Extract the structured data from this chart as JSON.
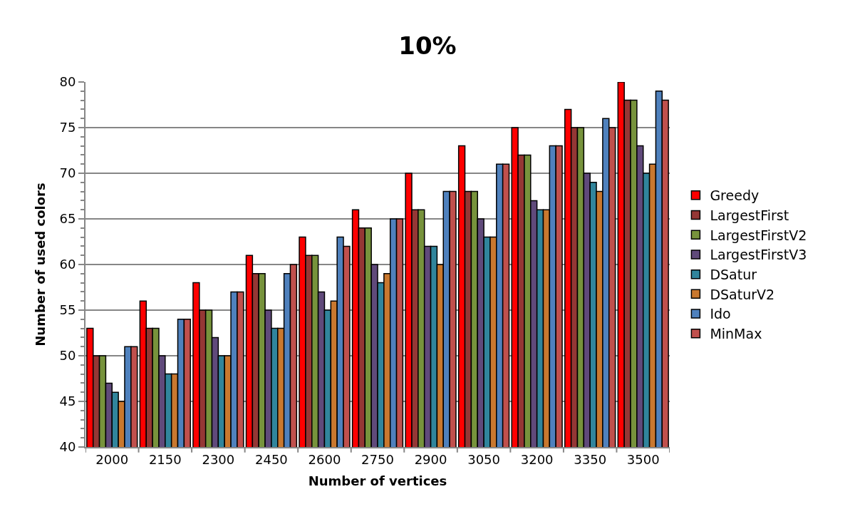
{
  "chart_data": {
    "type": "bar",
    "title": "10%",
    "xlabel": "Number of vertices",
    "ylabel": "Number of used colors",
    "categories": [
      "2000",
      "2150",
      "2300",
      "2450",
      "2600",
      "2750",
      "2900",
      "3050",
      "3200",
      "3350",
      "3500"
    ],
    "series": [
      {
        "name": "Greedy",
        "color": "#ff0000",
        "values": [
          53,
          56,
          58,
          61,
          63,
          66,
          70,
          73,
          75,
          77,
          80
        ]
      },
      {
        "name": "LargestFirst",
        "color": "#953735",
        "values": [
          50,
          53,
          55,
          59,
          61,
          64,
          66,
          68,
          72,
          75,
          78
        ]
      },
      {
        "name": "LargestFirstV2",
        "color": "#77933c",
        "values": [
          50,
          53,
          55,
          59,
          61,
          64,
          66,
          68,
          72,
          75,
          78
        ]
      },
      {
        "name": "LargestFirstV3",
        "color": "#604a7b",
        "values": [
          47,
          50,
          52,
          55,
          57,
          60,
          62,
          65,
          67,
          70,
          73
        ]
      },
      {
        "name": "DSatur",
        "color": "#31859c",
        "values": [
          46,
          48,
          50,
          53,
          55,
          58,
          62,
          63,
          66,
          69,
          70
        ]
      },
      {
        "name": "DSaturV2",
        "color": "#c9782f",
        "values": [
          45,
          48,
          50,
          53,
          56,
          59,
          60,
          63,
          66,
          68,
          71
        ]
      },
      {
        "name": "Ido",
        "color": "#4f81bd",
        "values": [
          51,
          54,
          57,
          59,
          63,
          65,
          68,
          71,
          73,
          76,
          79
        ]
      },
      {
        "name": "MinMax",
        "color": "#c0504d",
        "values": [
          51,
          54,
          57,
          60,
          62,
          65,
          68,
          71,
          73,
          75,
          78
        ]
      }
    ],
    "ylim": [
      40,
      80
    ],
    "yticks": [
      40,
      45,
      50,
      55,
      60,
      65,
      70,
      75,
      80
    ],
    "grid": "y",
    "legend": "right"
  }
}
